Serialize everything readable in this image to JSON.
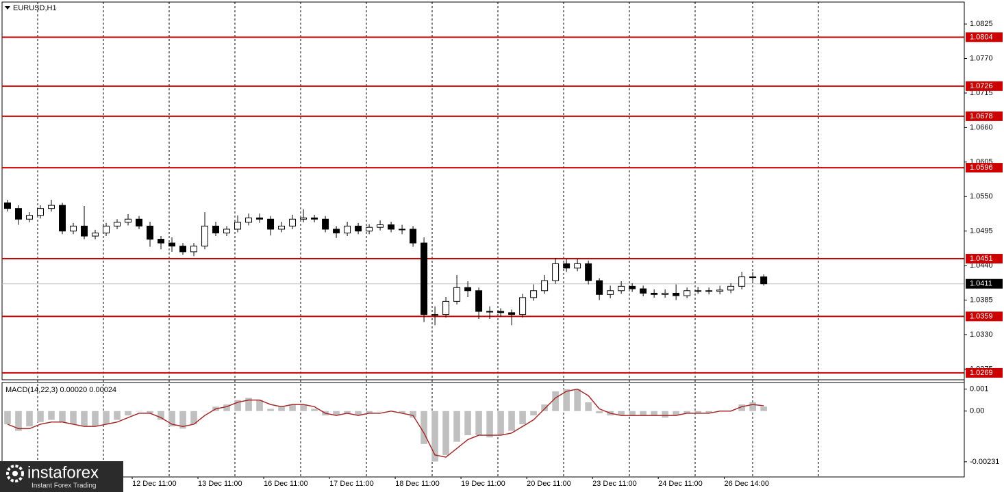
{
  "chart_data": [
    {
      "type": "candlestick",
      "title": "EURUSD,H1",
      "open": [
        1.054,
        1.0531,
        1.0514,
        1.052,
        1.0531,
        1.0536,
        1.0495,
        1.0503,
        1.0487,
        1.0492,
        1.0503,
        1.0509,
        1.0514,
        1.0503,
        1.0482,
        1.0476,
        1.0471,
        1.0462,
        1.0471,
        1.0503,
        1.0492,
        1.0498,
        1.0509,
        1.0516,
        1.0514,
        1.0498,
        1.0503,
        1.0514,
        1.0516,
        1.0514,
        1.0498,
        1.0492,
        1.0503,
        1.0495,
        1.0501,
        1.0505,
        1.0498,
        1.0498,
        1.0476,
        1.0362,
        1.0362,
        1.0383,
        1.0405,
        1.04,
        1.0367,
        1.0367,
        1.0365,
        1.0362,
        1.0389,
        1.04,
        1.0416,
        1.0443,
        1.0436,
        1.0443,
        1.0416,
        1.0394,
        1.04,
        1.0407,
        1.0403,
        1.0396,
        1.0394,
        1.0396,
        1.0392,
        1.04,
        1.04,
        1.0399,
        1.0401,
        1.0407,
        1.0422,
        1.0422
      ],
      "high": [
        1.0545,
        1.0536,
        1.0525,
        1.0536,
        1.0545,
        1.054,
        1.0508,
        1.0535,
        1.0497,
        1.0508,
        1.0514,
        1.0522,
        1.0519,
        1.051,
        1.0487,
        1.0485,
        1.0476,
        1.0476,
        1.0525,
        1.051,
        1.0503,
        1.052,
        1.0523,
        1.0523,
        1.0519,
        1.051,
        1.0521,
        1.053,
        1.0521,
        1.0519,
        1.0503,
        1.051,
        1.0508,
        1.0506,
        1.0512,
        1.051,
        1.0505,
        1.0503,
        1.0485,
        1.0375,
        1.039,
        1.0425,
        1.0415,
        1.0405,
        1.0375,
        1.0372,
        1.037,
        1.0395,
        1.041,
        1.0425,
        1.0452,
        1.045,
        1.045,
        1.0448,
        1.042,
        1.0408,
        1.0415,
        1.0412,
        1.0408,
        1.0402,
        1.0402,
        1.041,
        1.0405,
        1.0406,
        1.0405,
        1.0408,
        1.0412,
        1.043,
        1.043,
        1.0426
      ],
      "low": [
        1.0526,
        1.0505,
        1.0509,
        1.0515,
        1.0526,
        1.049,
        1.049,
        1.0482,
        1.0482,
        1.0487,
        1.0498,
        1.0504,
        1.0498,
        1.047,
        1.0466,
        1.0462,
        1.0457,
        1.0455,
        1.0466,
        1.0487,
        1.0487,
        1.0493,
        1.0504,
        1.0508,
        1.0488,
        1.0493,
        1.0498,
        1.0509,
        1.0509,
        1.0493,
        1.0484,
        1.0487,
        1.049,
        1.049,
        1.0496,
        1.0493,
        1.049,
        1.047,
        1.035,
        1.0345,
        1.0357,
        1.0378,
        1.039,
        1.0355,
        1.0355,
        1.0358,
        1.0345,
        1.0357,
        1.0384,
        1.0395,
        1.0411,
        1.043,
        1.0431,
        1.041,
        1.0385,
        1.0388,
        1.0395,
        1.0398,
        1.0391,
        1.0389,
        1.0389,
        1.0385,
        1.0388,
        1.0395,
        1.0394,
        1.0394,
        1.0396,
        1.0402,
        1.0415,
        1.0408
      ],
      "close": [
        1.0531,
        1.0514,
        1.052,
        1.0531,
        1.0536,
        1.0495,
        1.0503,
        1.0487,
        1.0492,
        1.0503,
        1.0509,
        1.0514,
        1.0503,
        1.0482,
        1.0476,
        1.0471,
        1.0462,
        1.0471,
        1.0503,
        1.0492,
        1.0498,
        1.0509,
        1.0516,
        1.0514,
        1.0498,
        1.0503,
        1.0514,
        1.0516,
        1.0514,
        1.0498,
        1.0492,
        1.0503,
        1.0495,
        1.0501,
        1.0505,
        1.0498,
        1.0498,
        1.0476,
        1.0362,
        1.0362,
        1.0383,
        1.0405,
        1.04,
        1.0367,
        1.0367,
        1.0365,
        1.0362,
        1.0389,
        1.04,
        1.0416,
        1.0443,
        1.0436,
        1.0443,
        1.0416,
        1.0394,
        1.04,
        1.0407,
        1.0403,
        1.0396,
        1.0394,
        1.0396,
        1.0392,
        1.04,
        1.04,
        1.0399,
        1.0401,
        1.0407,
        1.0422,
        1.0422,
        1.0411
      ],
      "bull_color": "#ffffff",
      "bear_color": "#000000",
      "xlim": [
        -0.5,
        87.3
      ],
      "xticks": [
        {
          "value": 11.375,
          "label": "12 Dec 11:00"
        },
        {
          "value": 17.375,
          "label": "13 Dec 11:00"
        },
        {
          "value": 23.375,
          "label": "16 Dec 11:00"
        },
        {
          "value": 29.375,
          "label": "17 Dec 11:00"
        },
        {
          "value": 35.375,
          "label": "18 Dec 11:00"
        },
        {
          "value": 41.375,
          "label": "19 Dec 11:00"
        },
        {
          "value": 47.375,
          "label": "20 Dec 11:00"
        },
        {
          "value": 53.375,
          "label": "23 Dec 11:00"
        },
        {
          "value": 59.375,
          "label": "24 Dec 11:00"
        },
        {
          "value": 65.4,
          "label": "26 Dec 14:00"
        }
      ],
      "ylim": [
        1.0258,
        1.086
      ],
      "yticks": [
        1.0825,
        {
          "value": 1.077,
          "label": "1.0770"
        },
        1.0715,
        {
          "value": 1.066,
          "label": "1.0660"
        },
        1.0605,
        {
          "value": 1.055,
          "label": "1.0550"
        },
        1.0495,
        {
          "value": 1.044,
          "label": "1.0440"
        },
        1.0385,
        {
          "value": 1.033,
          "label": "1.0330"
        },
        1.0275
      ],
      "levels": [
        1.0804,
        1.0726,
        1.0678,
        1.0596,
        1.0451,
        1.0359,
        1.0269
      ],
      "level_color": "#cc0000",
      "last_price": 1.0411
    },
    {
      "type": "macd",
      "title": "MACD(14,22,3) 0.00020 0.00024",
      "histogram": [
        -0.0006,
        -0.0009,
        -0.0007,
        -0.0005,
        -0.0004,
        -0.0005,
        -0.0006,
        -0.0007,
        -0.0007,
        -0.0006,
        -0.0004,
        -0.0002,
        0,
        -0.0001,
        -0.0004,
        -0.0007,
        -0.0008,
        -0.0006,
        0,
        0.0002,
        0.0003,
        0.0005,
        0.0006,
        0.0005,
        0.0001,
        0.0002,
        0.0003,
        0.0003,
        0.0001,
        -0.0002,
        -0.0002,
        -0.0001,
        -0.0002,
        -0.0001,
        0,
        0,
        -0.0001,
        -0.0003,
        -0.0015,
        -0.0023,
        -0.002,
        -0.0014,
        -0.0011,
        -0.0011,
        -0.0012,
        -0.0011,
        -0.0009,
        -0.0006,
        -0.0002,
        0.0003,
        0.0009,
        0.001,
        0.001,
        0.0004,
        -0.0001,
        -0.0002,
        -0.0002,
        -0.0002,
        -0.0002,
        -0.0002,
        -0.0003,
        -0.0002,
        -0.0001,
        -0.0001,
        -0.0001,
        0,
        0,
        0.0003,
        0.0004,
        0.0002
      ],
      "signal": [
        -0.0006,
        -0.0008,
        -0.0008,
        -0.0006,
        -0.0005,
        -0.0005,
        -0.0006,
        -0.0007,
        -0.0007,
        -0.0006,
        -0.0005,
        -0.0003,
        -0.0001,
        -0.0001,
        -0.0003,
        -0.0006,
        -0.0007,
        -0.0006,
        -0.0002,
        0.0001,
        0.0002,
        0.0004,
        0.0005,
        0.0005,
        0.0003,
        0.0002,
        0.0003,
        0.0003,
        0.0002,
        -0.0001,
        -0.0002,
        -0.0001,
        -0.0002,
        -0.0001,
        -0.0001,
        0,
        -0.0001,
        -0.0002,
        -0.001,
        -0.002,
        -0.0021,
        -0.0017,
        -0.0013,
        -0.0011,
        -0.0011,
        -0.0011,
        -0.001,
        -0.0007,
        -0.0004,
        0.0001,
        0.0006,
        0.0009,
        0.001,
        0.0007,
        0.0001,
        -0.0001,
        -0.0002,
        -0.0002,
        -0.0002,
        -0.0002,
        -0.0002,
        -0.0002,
        -0.0001,
        -0.0001,
        -0.0001,
        0,
        0,
        0.0002,
        0.0003,
        0.00024
      ],
      "histogram_color": "#c0c0c0",
      "signal_color": "#a52a2a",
      "ylim": [
        -0.003,
        0.0013
      ],
      "yticks": [
        0.001,
        {
          "value": 0,
          "label": "0.00"
        },
        -0.00231
      ]
    }
  ],
  "watermark": {
    "name": "instaforex",
    "tagline": "Instant Forex Trading"
  }
}
